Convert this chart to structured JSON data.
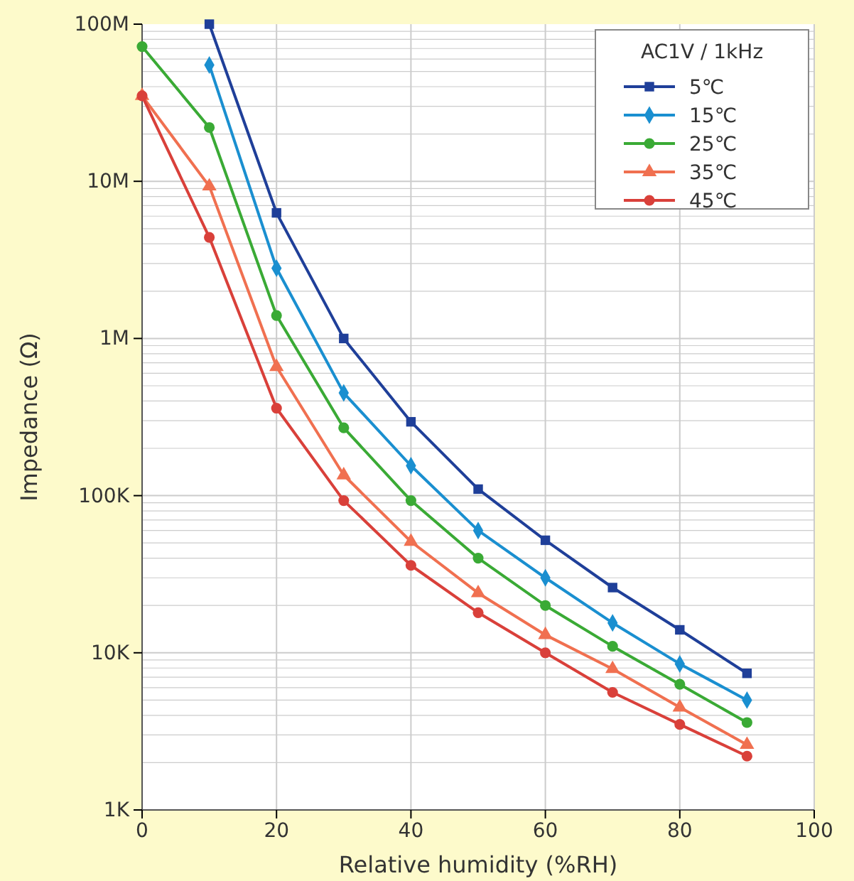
{
  "chart_data": {
    "type": "line",
    "xlabel": "Relative humidity (%RH)",
    "ylabel": "Impedance (Ω)",
    "legend_title": "AC1V / 1kHz",
    "legend": "top right",
    "grid": true,
    "log": "y",
    "x": [
      0,
      10,
      20,
      30,
      40,
      50,
      60,
      70,
      80,
      90
    ],
    "xlim": [
      0,
      100
    ],
    "xticks": [
      0,
      20,
      40,
      60,
      80,
      100
    ],
    "ylim": [
      1000,
      100000000
    ],
    "yticks": [
      {
        "value": 1000,
        "label": "1K"
      },
      {
        "value": 10000,
        "label": "10K"
      },
      {
        "value": 100000,
        "label": "100K"
      },
      {
        "value": 1000000,
        "label": "1M"
      },
      {
        "value": 10000000,
        "label": "10M"
      },
      {
        "value": 100000000,
        "label": "100M"
      }
    ],
    "series": [
      {
        "name": "5℃",
        "color": "#1f3f99",
        "marker": "square",
        "values": [
          null,
          100000000,
          6300000,
          1000000,
          295000,
          110000,
          52000,
          26000,
          14000,
          7400
        ]
      },
      {
        "name": "15℃",
        "color": "#1a8fd0",
        "marker": "diamond",
        "values": [
          null,
          55000000,
          2800000,
          450000,
          155000,
          60000,
          30000,
          15500,
          8500,
          5000
        ]
      },
      {
        "name": "25℃",
        "color": "#3aaa35",
        "marker": "circle",
        "values": [
          72000000,
          22000000,
          1400000,
          270000,
          93000,
          40000,
          20000,
          11000,
          6300,
          3600
        ]
      },
      {
        "name": "35℃",
        "color": "#f07050",
        "marker": "triangle",
        "values": [
          35000000,
          9300000,
          660000,
          135000,
          51000,
          24000,
          13000,
          7900,
          4500,
          2600
        ]
      },
      {
        "name": "45℃",
        "color": "#d9403a",
        "marker": "circle",
        "values": [
          35000000,
          4400000,
          360000,
          93000,
          36000,
          18000,
          10000,
          5600,
          3500,
          2200
        ]
      }
    ]
  }
}
